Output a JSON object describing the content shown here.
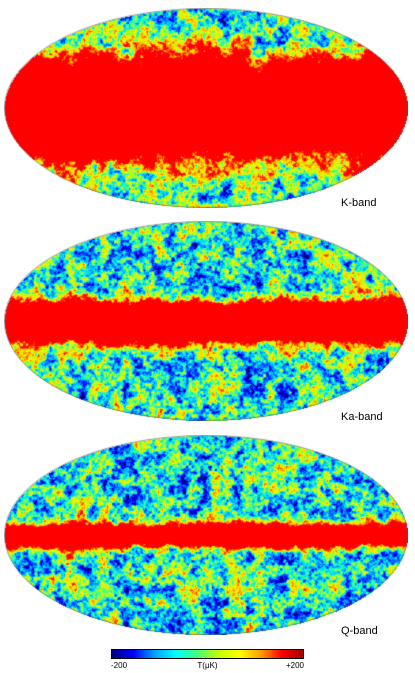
{
  "maps": [
    {
      "id": "k",
      "label": "K-band",
      "galactic_band": "wide"
    },
    {
      "id": "ka",
      "label": "Ka-band",
      "galactic_band": "medium"
    },
    {
      "id": "q",
      "label": "Q-band",
      "galactic_band": "narrow"
    }
  ],
  "colorbar": {
    "min_label": "-200",
    "unit_label": "T(μK)",
    "max_label": "+200",
    "min": -200,
    "max": 200,
    "colors": [
      "#000080",
      "#0000ff",
      "#00a0ff",
      "#00ffff",
      "#40ff80",
      "#c0ff00",
      "#ffff00",
      "#ffa000",
      "#ff0000",
      "#a00000"
    ]
  }
}
